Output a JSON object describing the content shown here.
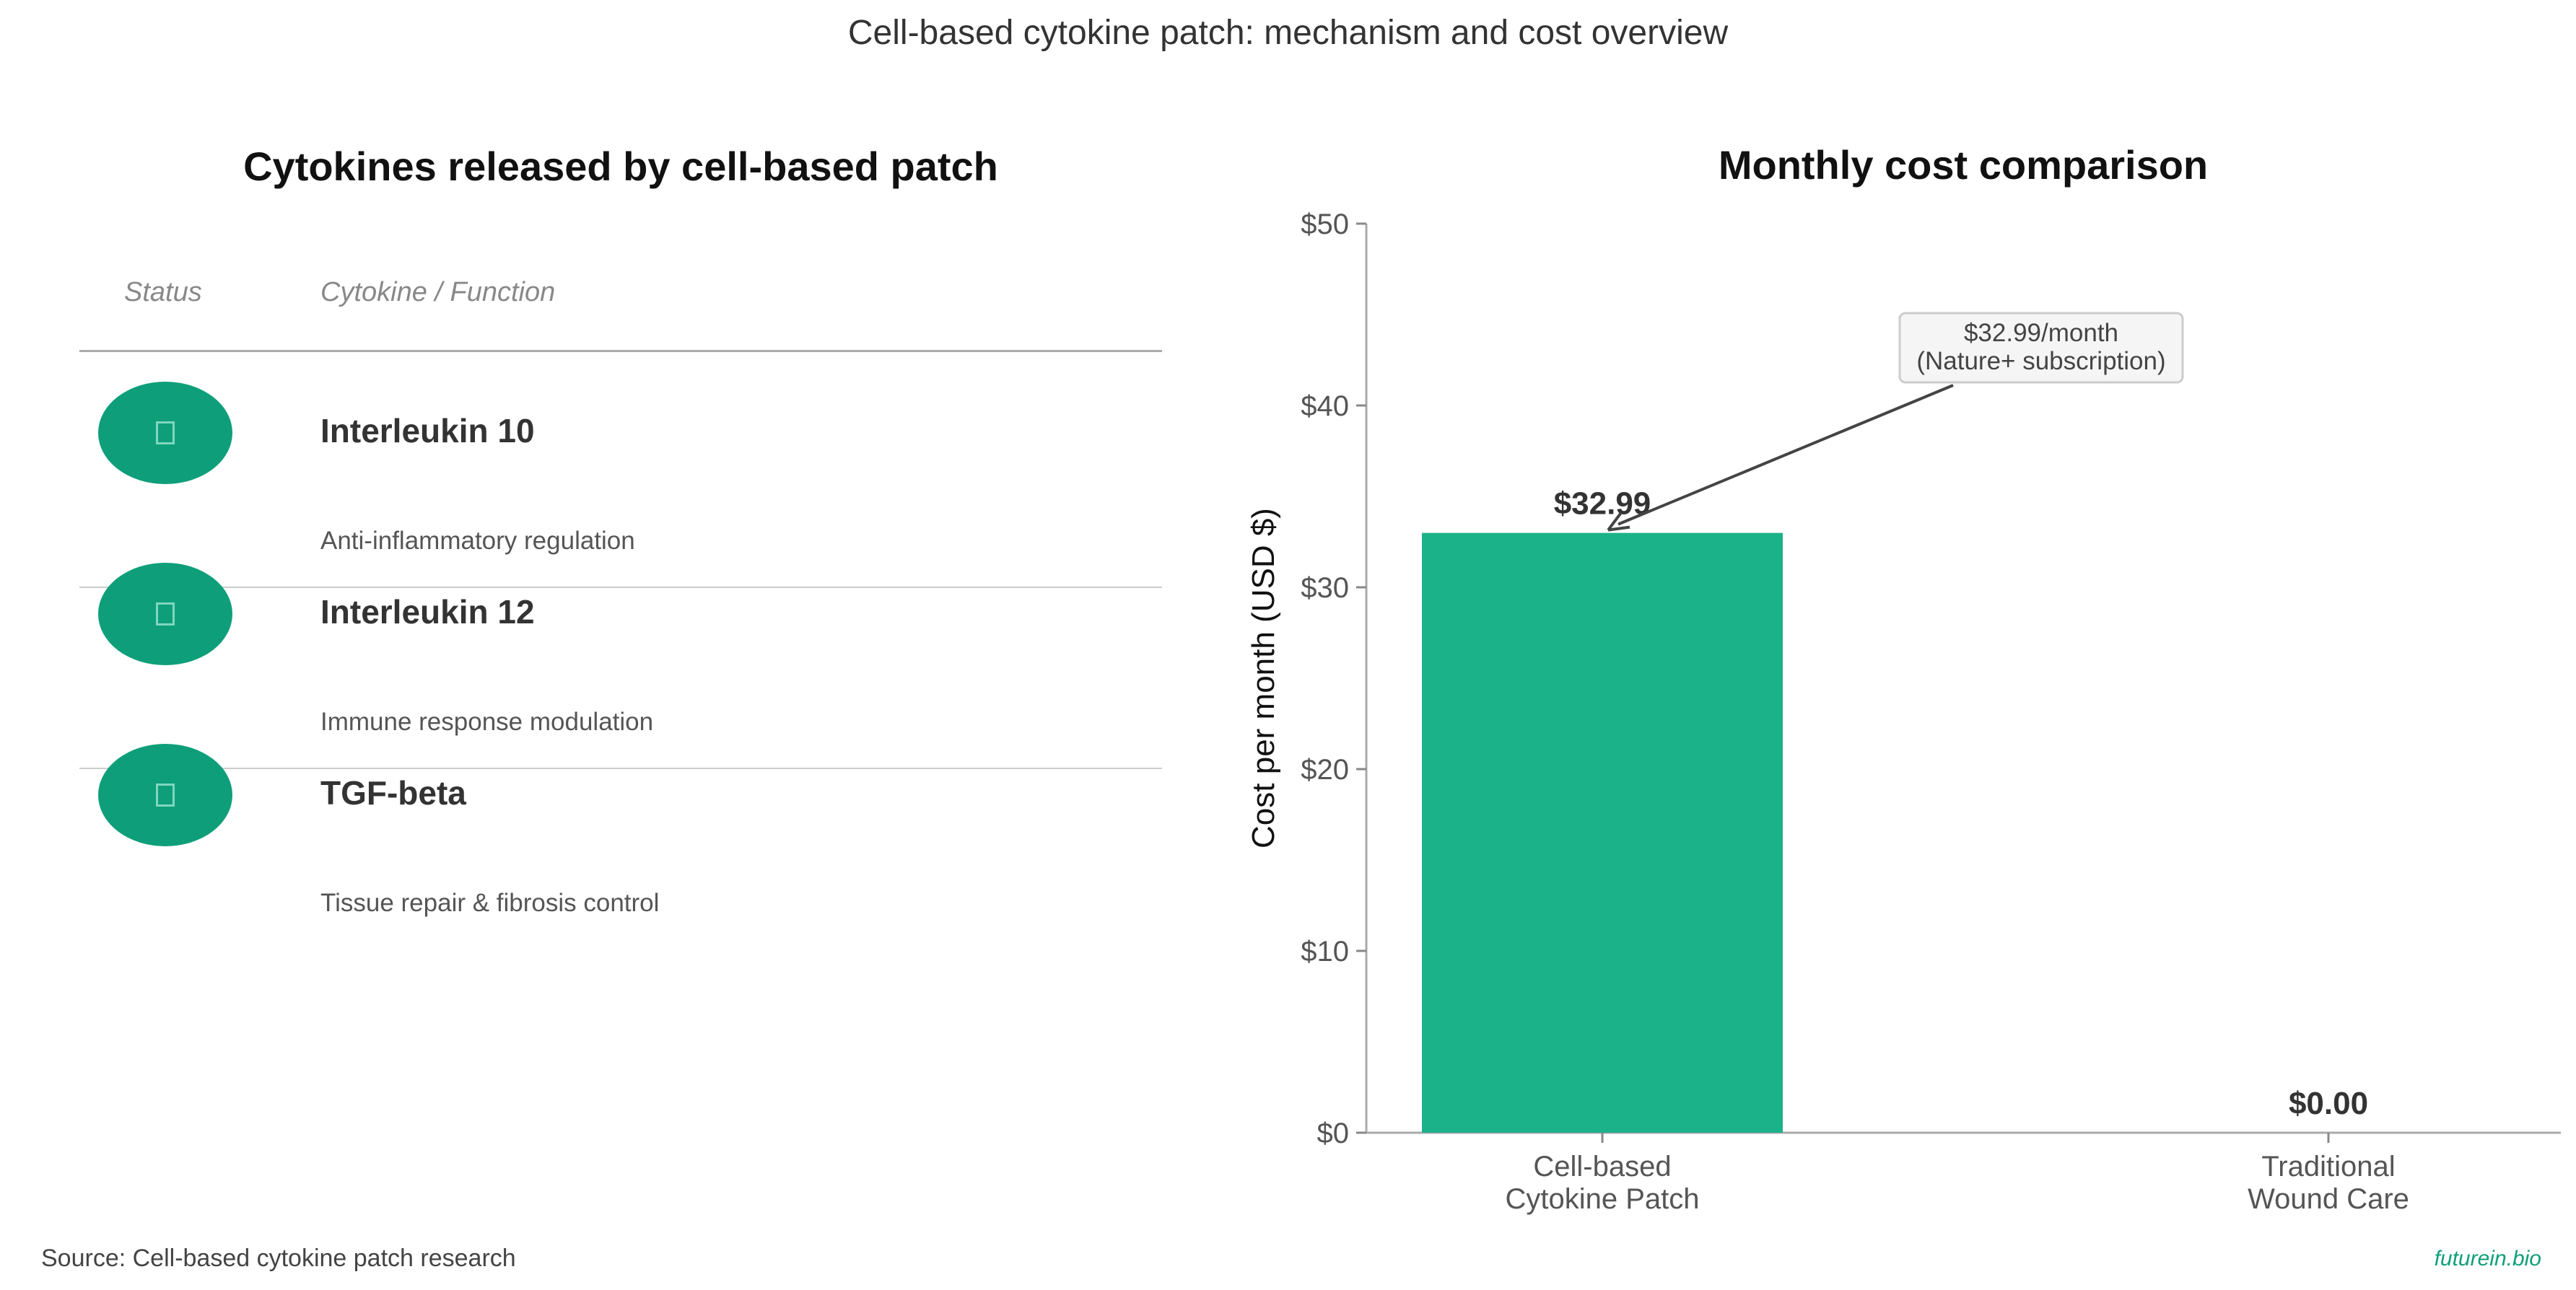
{
  "figure": {
    "suptitle": "Cell-based cytokine patch: mechanism and cost overview",
    "source": "Source: Cell-based cytokine patch research",
    "brand": "futurein.bio",
    "accent_color": "#0e9f7a",
    "bar_color": "#1bb189"
  },
  "table": {
    "title": "Cytokines released by cell-based patch",
    "headers": {
      "status": "Status",
      "cytokine": "Cytokine / Function"
    },
    "rows": [
      {
        "status_icon": "check-icon",
        "name": "Interleukin 10",
        "function": "Anti-inflammatory regulation"
      },
      {
        "status_icon": "check-icon",
        "name": "Interleukin 12",
        "function": "Immune response modulation"
      },
      {
        "status_icon": "check-icon",
        "name": "TGF-beta",
        "function": "Tissue repair & fibrosis control"
      }
    ]
  },
  "chart_data": {
    "type": "bar",
    "title": "Monthly cost comparison",
    "ylabel": "Cost per month (USD $)",
    "xlabel": "",
    "categories": [
      "Cell-based\nCytokine Patch",
      "Traditional\nWound Care"
    ],
    "values": [
      32.99,
      0.0
    ],
    "value_labels": [
      "$32.99",
      "$0.00"
    ],
    "ylim": [
      0,
      50
    ],
    "yticks": [
      0,
      10,
      20,
      30,
      40,
      50
    ],
    "ytick_labels": [
      "$0",
      "$10",
      "$20",
      "$30",
      "$40",
      "$50"
    ],
    "grid": false,
    "annotation": {
      "text": [
        "$32.99/month",
        "(Nature+ subscription)"
      ],
      "points_to_category": 0,
      "points_to_value": 32.99
    }
  }
}
